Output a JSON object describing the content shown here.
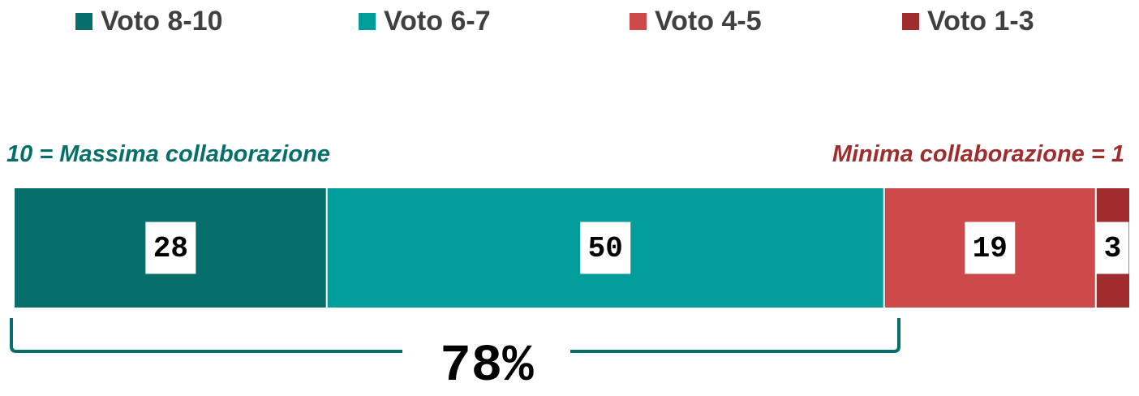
{
  "legend": {
    "items": [
      {
        "label": "Voto 8-10",
        "color": "#076F6B"
      },
      {
        "label": "Voto 6-7",
        "color": "#009D9B"
      },
      {
        "label": "Voto 4-5",
        "color": "#CE4A4A"
      },
      {
        "label": "Voto 1-3",
        "color": "#A02D2D"
      }
    ]
  },
  "scale": {
    "left_label": "10 = Massima collaborazione",
    "left_color": "#076F6B",
    "right_label": "Minima collaborazione = 1",
    "right_color": "#A02D2D"
  },
  "summary": {
    "value": "78%",
    "bracket_color": "#076F6B"
  },
  "chart_data": {
    "type": "bar",
    "orientation": "horizontal-stacked",
    "categories": [
      "Voto 8-10",
      "Voto 6-7",
      "Voto 4-5",
      "Voto 1-3"
    ],
    "values": [
      28,
      50,
      19,
      3
    ],
    "value_labels": [
      "28",
      "50",
      "19",
      "3"
    ],
    "colors": [
      "#076F6B",
      "#009D9B",
      "#CE4A4A",
      "#A02D2D"
    ],
    "total": 100,
    "legend_position": "top",
    "grid": false
  }
}
